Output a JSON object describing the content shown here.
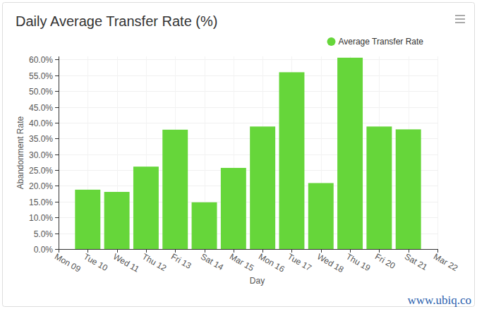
{
  "chart_data": {
    "type": "bar",
    "title": "Daily Average Transfer Rate (%)",
    "x_label": "Day",
    "y_label": "Abandonment Rate",
    "annotations": [
      "www.ubiq.co"
    ],
    "x": [
      10,
      11,
      12,
      13,
      14,
      15,
      16,
      17,
      18,
      19,
      20,
      21
    ],
    "series": [
      {
        "name": "Average Transfer Rate",
        "color": "#66d63a",
        "values": [
          18.8,
          18.1,
          26.1,
          37.8,
          14.8,
          25.7,
          38.8,
          56.0,
          20.9,
          60.6,
          38.8,
          37.9
        ]
      }
    ],
    "xlim": [
      9,
      22
    ],
    "xticks": [
      {
        "value": 9,
        "label": "Mon 09"
      },
      {
        "value": 10,
        "label": "Tue 10"
      },
      {
        "value": 11,
        "label": "Wed 11"
      },
      {
        "value": 12,
        "label": "Thu 12"
      },
      {
        "value": 13,
        "label": "Fri 13"
      },
      {
        "value": 14,
        "label": "Sat 14"
      },
      {
        "value": 15,
        "label": "Mar 15"
      },
      {
        "value": 16,
        "label": "Mon 16"
      },
      {
        "value": 17,
        "label": "Tue 17"
      },
      {
        "value": 18,
        "label": "Wed 18"
      },
      {
        "value": 19,
        "label": "Thu 19"
      },
      {
        "value": 20,
        "label": "Fri 20"
      },
      {
        "value": 21,
        "label": "Sat 21"
      },
      {
        "value": 22,
        "label": "Mar 22"
      }
    ],
    "ylim": [
      0,
      61
    ],
    "yticks": [
      {
        "value": 0,
        "label": "0.0%"
      },
      {
        "value": 5,
        "label": "5.0%"
      },
      {
        "value": 10,
        "label": "10.0%"
      },
      {
        "value": 15,
        "label": "15.0%"
      },
      {
        "value": 20,
        "label": "20.0%"
      },
      {
        "value": 25,
        "label": "25.0%"
      },
      {
        "value": 30,
        "label": "30.0%"
      },
      {
        "value": 35,
        "label": "35.0%"
      },
      {
        "value": 40,
        "label": "40.0%"
      },
      {
        "value": 45,
        "label": "45.0%"
      },
      {
        "value": 50,
        "label": "50.0%"
      },
      {
        "value": 55,
        "label": "55.0%"
      },
      {
        "value": 60,
        "label": "60.0%"
      }
    ],
    "grid": true,
    "legend": "top-right"
  }
}
